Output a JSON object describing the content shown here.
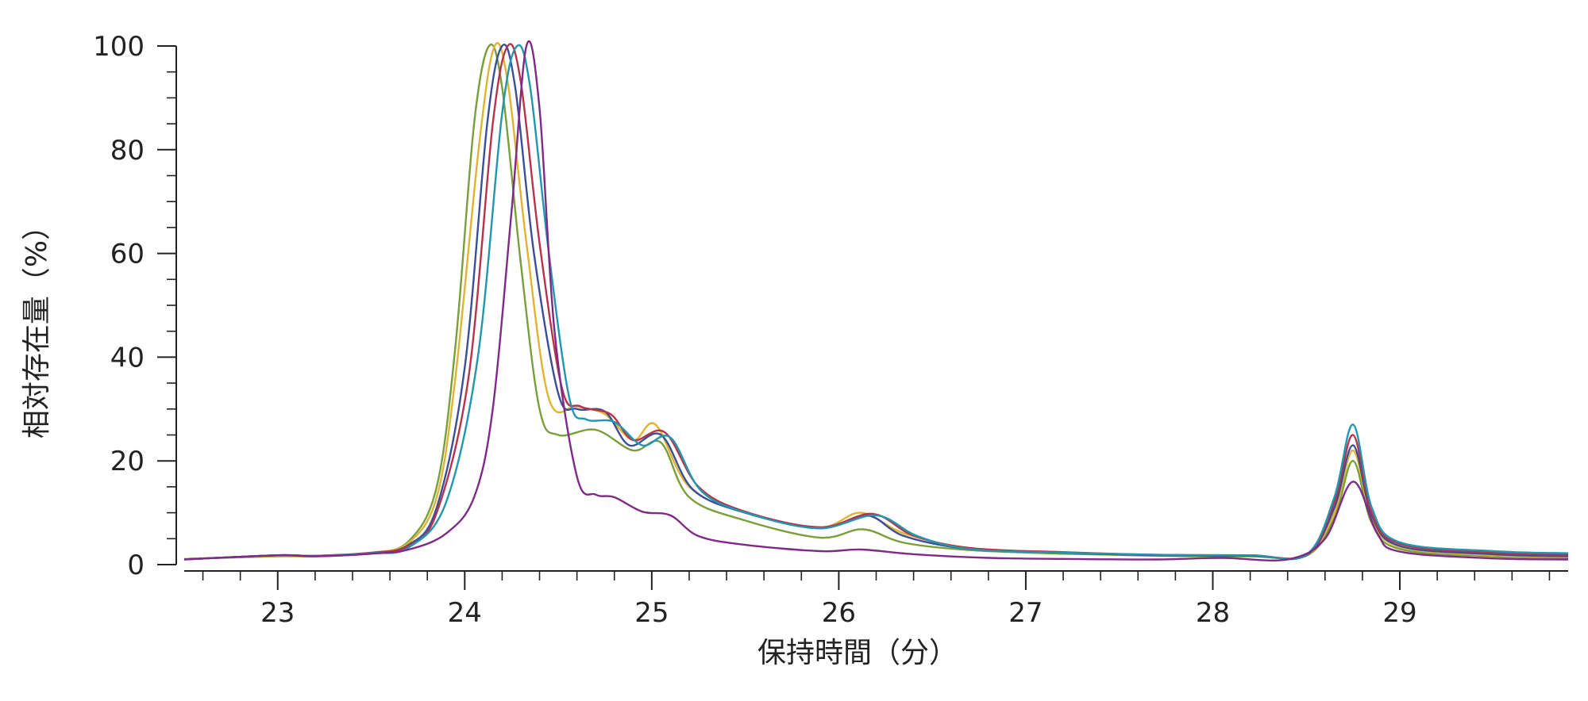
{
  "chart_data": {
    "type": "line",
    "title": "",
    "xlabel": "保持時間（分）",
    "ylabel": "相対存在量（%）",
    "xlim": [
      22.5,
      29.9
    ],
    "ylim": [
      0,
      100
    ],
    "x_ticks": [
      23,
      24,
      25,
      26,
      27,
      28,
      29
    ],
    "y_ticks": [
      0,
      20,
      40,
      60,
      80,
      100
    ],
    "grid": false,
    "legend": "none",
    "series": [
      {
        "color": "#7a9e3a",
        "points": [
          [
            22.5,
            1.1
          ],
          [
            23.0,
            1.6
          ],
          [
            23.2,
            1.6
          ],
          [
            23.5,
            2.2
          ],
          [
            23.7,
            4.5
          ],
          [
            23.85,
            15
          ],
          [
            23.95,
            42
          ],
          [
            24.05,
            85
          ],
          [
            24.13,
            100
          ],
          [
            24.2,
            92
          ],
          [
            24.3,
            58
          ],
          [
            24.4,
            30
          ],
          [
            24.5,
            25
          ],
          [
            24.7,
            26
          ],
          [
            24.9,
            22
          ],
          [
            25.05,
            23.5
          ],
          [
            25.2,
            13
          ],
          [
            25.5,
            8.5
          ],
          [
            25.9,
            5.2
          ],
          [
            26.13,
            6.8
          ],
          [
            26.35,
            4.2
          ],
          [
            26.7,
            2.8
          ],
          [
            27.2,
            2.1
          ],
          [
            27.7,
            1.7
          ],
          [
            28.2,
            1.6
          ],
          [
            28.5,
            1.7
          ],
          [
            28.65,
            9
          ],
          [
            28.75,
            20
          ],
          [
            28.85,
            8
          ],
          [
            29.0,
            3
          ],
          [
            29.5,
            1.6
          ],
          [
            29.9,
            1.3
          ]
        ]
      },
      {
        "color": "#e0b430",
        "points": [
          [
            22.5,
            1.1
          ],
          [
            23.0,
            1.7
          ],
          [
            23.2,
            1.6
          ],
          [
            23.5,
            2.3
          ],
          [
            23.7,
            4.2
          ],
          [
            23.85,
            13
          ],
          [
            23.95,
            36
          ],
          [
            24.08,
            82
          ],
          [
            24.16,
            100
          ],
          [
            24.23,
            93
          ],
          [
            24.33,
            62
          ],
          [
            24.45,
            32
          ],
          [
            24.6,
            30.5
          ],
          [
            24.75,
            29
          ],
          [
            24.9,
            24
          ],
          [
            25.02,
            27
          ],
          [
            25.2,
            15
          ],
          [
            25.5,
            10
          ],
          [
            25.9,
            7.2
          ],
          [
            26.12,
            10
          ],
          [
            26.35,
            6
          ],
          [
            26.7,
            3.2
          ],
          [
            27.2,
            2.4
          ],
          [
            27.7,
            1.8
          ],
          [
            28.2,
            1.7
          ],
          [
            28.5,
            1.8
          ],
          [
            28.65,
            10
          ],
          [
            28.75,
            22
          ],
          [
            28.85,
            9
          ],
          [
            29.0,
            3.4
          ],
          [
            29.5,
            1.8
          ],
          [
            29.9,
            1.5
          ]
        ]
      },
      {
        "color": "#3a4f9a",
        "points": [
          [
            22.5,
            1.0
          ],
          [
            23.0,
            1.8
          ],
          [
            23.2,
            1.7
          ],
          [
            23.5,
            2.2
          ],
          [
            23.7,
            3.8
          ],
          [
            23.85,
            11
          ],
          [
            24.0,
            38
          ],
          [
            24.12,
            85
          ],
          [
            24.2,
            100
          ],
          [
            24.27,
            92
          ],
          [
            24.37,
            60
          ],
          [
            24.5,
            33
          ],
          [
            24.6,
            30
          ],
          [
            24.75,
            29.5
          ],
          [
            24.88,
            23
          ],
          [
            25.05,
            25
          ],
          [
            25.22,
            14.5
          ],
          [
            25.5,
            10
          ],
          [
            25.9,
            7
          ],
          [
            26.15,
            9.5
          ],
          [
            26.35,
            5.5
          ],
          [
            26.7,
            3
          ],
          [
            27.2,
            2.3
          ],
          [
            27.7,
            1.8
          ],
          [
            28.2,
            1.7
          ],
          [
            28.5,
            1.8
          ],
          [
            28.65,
            11
          ],
          [
            28.75,
            23
          ],
          [
            28.85,
            9.5
          ],
          [
            29.0,
            3.6
          ],
          [
            29.5,
            2.0
          ],
          [
            29.9,
            1.6
          ]
        ]
      },
      {
        "color": "#b8324a",
        "points": [
          [
            22.5,
            1.0
          ],
          [
            23.0,
            1.8
          ],
          [
            23.2,
            1.7
          ],
          [
            23.5,
            2.3
          ],
          [
            23.7,
            3.6
          ],
          [
            23.85,
            10
          ],
          [
            24.02,
            36
          ],
          [
            24.15,
            85
          ],
          [
            24.23,
            100
          ],
          [
            24.3,
            93
          ],
          [
            24.4,
            62
          ],
          [
            24.52,
            34
          ],
          [
            24.62,
            30.5
          ],
          [
            24.78,
            29
          ],
          [
            24.9,
            24
          ],
          [
            25.07,
            25.5
          ],
          [
            25.25,
            15
          ],
          [
            25.5,
            10.2
          ],
          [
            25.9,
            7.2
          ],
          [
            26.18,
            9.8
          ],
          [
            26.4,
            5.6
          ],
          [
            26.7,
            3.2
          ],
          [
            27.2,
            2.4
          ],
          [
            27.7,
            1.9
          ],
          [
            28.2,
            1.8
          ],
          [
            28.5,
            1.9
          ],
          [
            28.65,
            12
          ],
          [
            28.75,
            25
          ],
          [
            28.85,
            10
          ],
          [
            29.0,
            4
          ],
          [
            29.5,
            2.3
          ],
          [
            29.9,
            1.9
          ]
        ]
      },
      {
        "color": "#2196b0",
        "points": [
          [
            22.5,
            1.0
          ],
          [
            23.0,
            1.8
          ],
          [
            23.2,
            1.7
          ],
          [
            23.5,
            2.2
          ],
          [
            23.7,
            3.3
          ],
          [
            23.9,
            12
          ],
          [
            24.07,
            40
          ],
          [
            24.2,
            87
          ],
          [
            24.28,
            100
          ],
          [
            24.35,
            92
          ],
          [
            24.45,
            60
          ],
          [
            24.56,
            32
          ],
          [
            24.65,
            28
          ],
          [
            24.8,
            27.5
          ],
          [
            24.95,
            23
          ],
          [
            25.1,
            24.5
          ],
          [
            25.27,
            14
          ],
          [
            25.55,
            9.5
          ],
          [
            25.9,
            7
          ],
          [
            26.2,
            9.5
          ],
          [
            26.42,
            5.5
          ],
          [
            26.7,
            3
          ],
          [
            27.2,
            2.3
          ],
          [
            27.7,
            1.9
          ],
          [
            28.2,
            1.8
          ],
          [
            28.5,
            1.9
          ],
          [
            28.65,
            13
          ],
          [
            28.75,
            27
          ],
          [
            28.85,
            11
          ],
          [
            29.0,
            4.3
          ],
          [
            29.5,
            2.6
          ],
          [
            29.9,
            2.2
          ]
        ]
      },
      {
        "color": "#7f2a86",
        "points": [
          [
            22.5,
            1.0
          ],
          [
            23.0,
            1.8
          ],
          [
            23.2,
            1.6
          ],
          [
            23.5,
            2.1
          ],
          [
            23.7,
            2.9
          ],
          [
            23.9,
            6
          ],
          [
            24.05,
            13
          ],
          [
            24.15,
            30
          ],
          [
            24.25,
            68
          ],
          [
            24.33,
            100
          ],
          [
            24.4,
            88
          ],
          [
            24.48,
            45
          ],
          [
            24.6,
            17
          ],
          [
            24.7,
            13.5
          ],
          [
            24.8,
            13
          ],
          [
            24.95,
            10.2
          ],
          [
            25.1,
            9.5
          ],
          [
            25.25,
            5.5
          ],
          [
            25.5,
            3.8
          ],
          [
            25.9,
            2.6
          ],
          [
            26.12,
            2.9
          ],
          [
            26.4,
            2
          ],
          [
            26.8,
            1.3
          ],
          [
            27.2,
            1.1
          ],
          [
            27.7,
            1.0
          ],
          [
            28.05,
            1.3
          ],
          [
            28.4,
            1.0
          ],
          [
            28.6,
            5
          ],
          [
            28.75,
            16
          ],
          [
            28.88,
            6
          ],
          [
            29.0,
            2.5
          ],
          [
            29.5,
            1.2
          ],
          [
            29.9,
            1.0
          ]
        ]
      }
    ]
  }
}
